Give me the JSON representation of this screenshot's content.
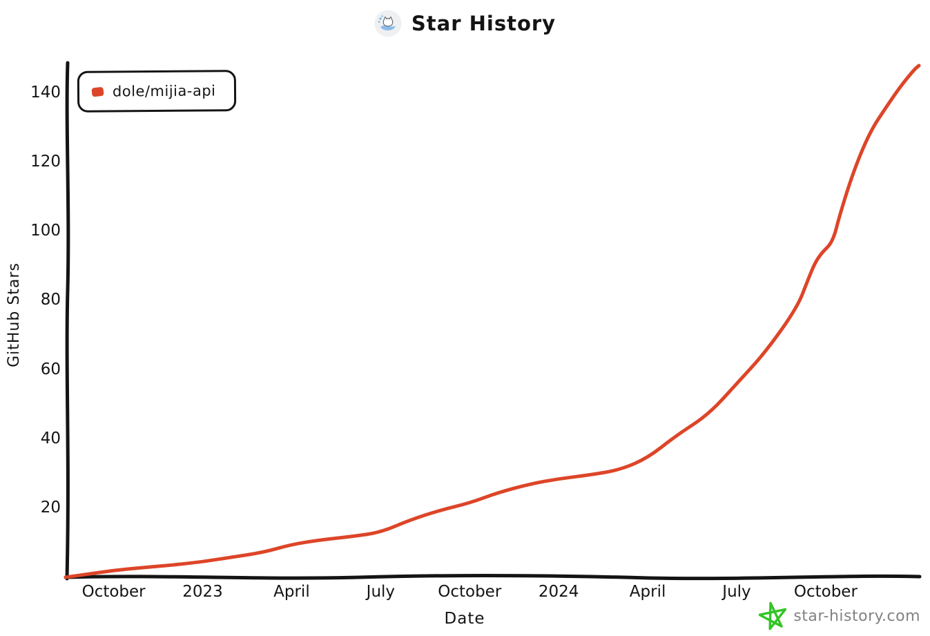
{
  "header": {
    "logo_icon": "star-history-logo",
    "title": "Star History"
  },
  "watermark": {
    "icon": "pentagram-star-icon",
    "label": "star-history.com",
    "star_color": "#33c426",
    "text_color": "#828282"
  },
  "colors": {
    "axis": "#141414",
    "series_red": "#dd4528",
    "background": "#ffffff"
  },
  "chart_data": {
    "type": "line",
    "title": "Star History",
    "xlabel": "Date",
    "ylabel": "GitHub Stars",
    "legend_position": "top-left-inside",
    "grid": false,
    "x_domain_years": [
      2022.615,
      2025.012
    ],
    "ylim": [
      0,
      149
    ],
    "y_ticks": [
      20,
      40,
      60,
      80,
      100,
      120,
      140
    ],
    "x_ticks": [
      {
        "label": "October",
        "t": 2022.75
      },
      {
        "label": "2023",
        "t": 2023.0
      },
      {
        "label": "April",
        "t": 2023.25
      },
      {
        "label": "July",
        "t": 2023.5
      },
      {
        "label": "October",
        "t": 2023.75
      },
      {
        "label": "2024",
        "t": 2024.0
      },
      {
        "label": "April",
        "t": 2024.25
      },
      {
        "label": "July",
        "t": 2024.5
      },
      {
        "label": "October",
        "t": 2024.75
      }
    ],
    "series": [
      {
        "name": "dole/mijia-api",
        "color": "#dd4528",
        "points": [
          [
            2022.615,
            0
          ],
          [
            2022.67,
            0.8
          ],
          [
            2022.75,
            2
          ],
          [
            2022.83,
            2.8
          ],
          [
            2022.92,
            3.6
          ],
          [
            2023.0,
            4.5
          ],
          [
            2023.08,
            5.8
          ],
          [
            2023.17,
            7.2
          ],
          [
            2023.25,
            9.5
          ],
          [
            2023.33,
            10.8
          ],
          [
            2023.42,
            11.8
          ],
          [
            2023.5,
            13
          ],
          [
            2023.58,
            16.5
          ],
          [
            2023.67,
            19.5
          ],
          [
            2023.75,
            21.5
          ],
          [
            2023.83,
            24.5
          ],
          [
            2023.92,
            27
          ],
          [
            2024.0,
            28.5
          ],
          [
            2024.08,
            29.5
          ],
          [
            2024.17,
            31
          ],
          [
            2024.25,
            34.5
          ],
          [
            2024.33,
            41
          ],
          [
            2024.42,
            47
          ],
          [
            2024.5,
            56
          ],
          [
            2024.58,
            65
          ],
          [
            2024.67,
            78
          ],
          [
            2024.7,
            86
          ],
          [
            2024.72,
            91
          ],
          [
            2024.74,
            94
          ],
          [
            2024.77,
            97
          ],
          [
            2024.79,
            105
          ],
          [
            2024.83,
            118
          ],
          [
            2024.875,
            129
          ],
          [
            2024.92,
            136
          ],
          [
            2024.96,
            142
          ],
          [
            2025.0,
            147
          ],
          [
            2025.012,
            148
          ]
        ]
      }
    ]
  }
}
